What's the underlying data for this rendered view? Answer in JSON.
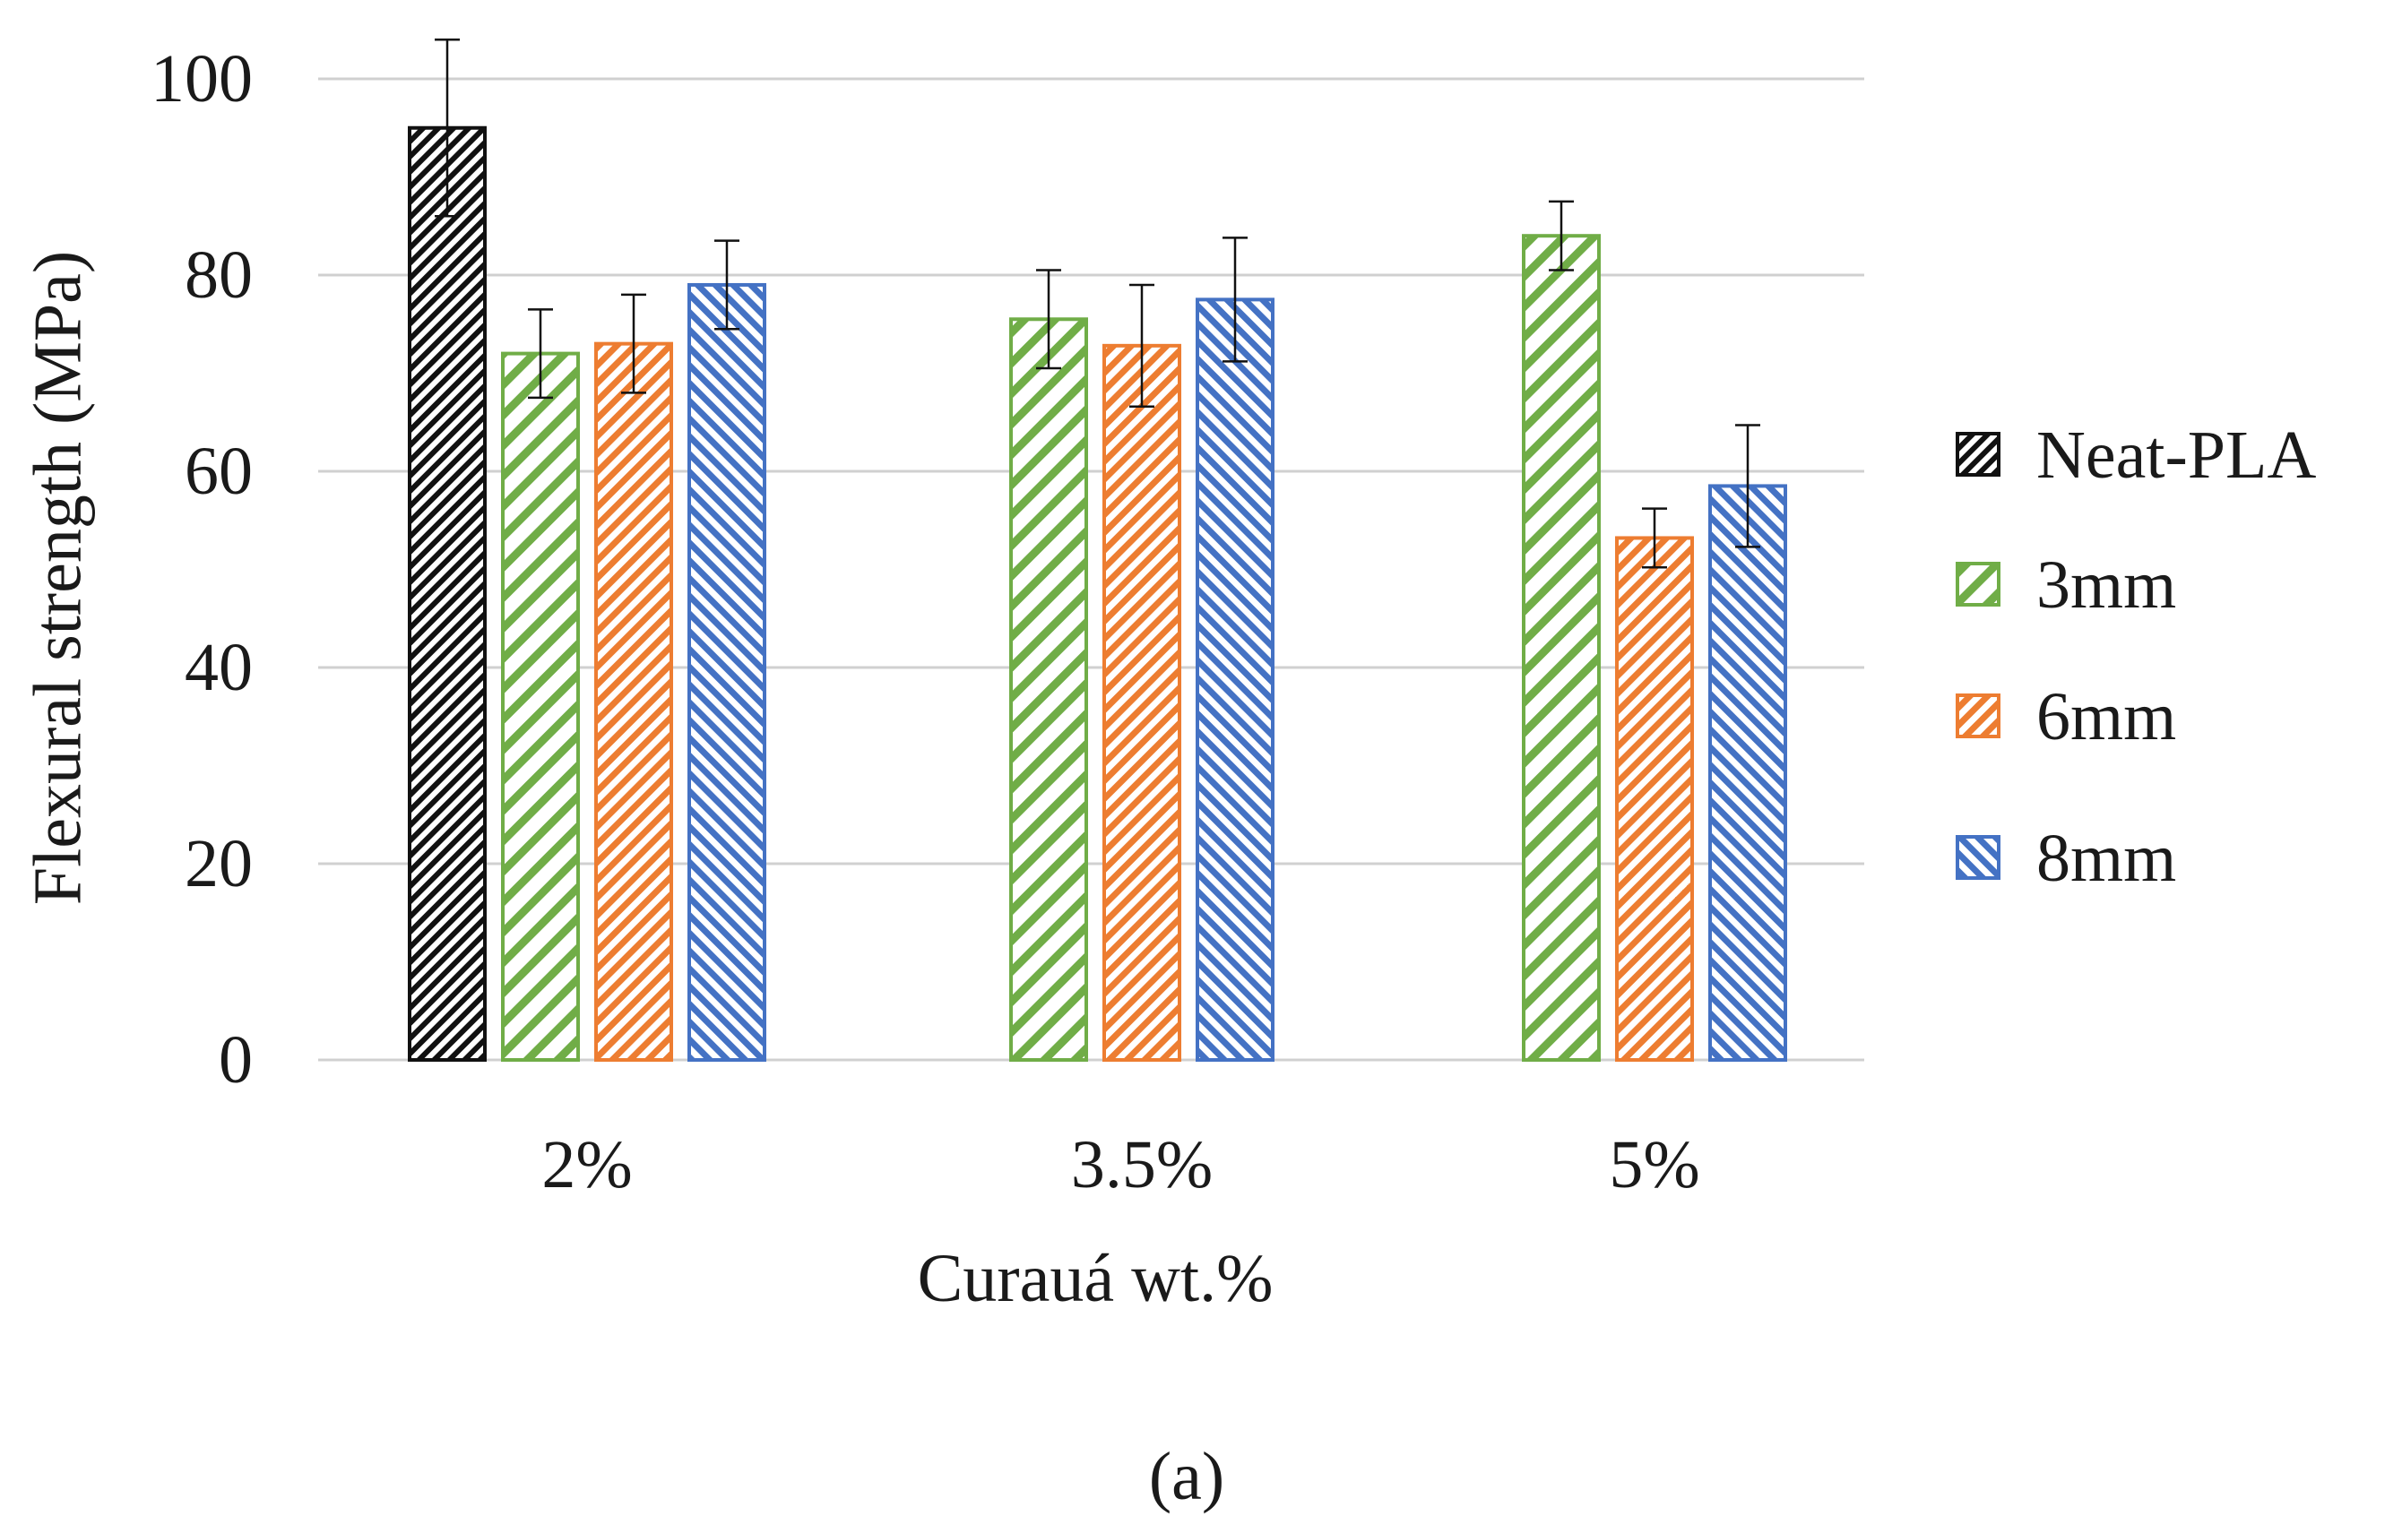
{
  "chart_data": {
    "type": "bar",
    "title": "",
    "xlabel": "Curauá wt.%",
    "ylabel": "Flexural strength (MPa)",
    "ylim": [
      0,
      100
    ],
    "yticks": [
      0,
      20,
      40,
      60,
      80,
      100
    ],
    "ytick_labels": [
      "0",
      "20",
      "40",
      "60",
      "80",
      "100"
    ],
    "grid": true,
    "legend_position": "right",
    "categories": [
      "2%",
      "3.5%",
      "5%"
    ],
    "series": [
      {
        "name": "Neat-PLA",
        "color": "#111111",
        "pattern": "diag-dense",
        "values": [
          95,
          null,
          null
        ],
        "errors": [
          9,
          null,
          null
        ]
      },
      {
        "name": "3mm",
        "color": "#70ad47",
        "pattern": "diag-wide",
        "values": [
          72,
          75.5,
          84
        ],
        "errors": [
          4.5,
          5,
          3.5
        ]
      },
      {
        "name": "6mm",
        "color": "#ed7d31",
        "pattern": "diag-medium",
        "values": [
          73,
          72.8,
          53.2
        ],
        "errors": [
          5,
          6.2,
          3
        ]
      },
      {
        "name": "8mm",
        "color": "#4472c4",
        "pattern": "diag-back",
        "values": [
          79,
          77.5,
          58.5
        ],
        "errors": [
          4.5,
          6.3,
          6.2
        ]
      }
    ]
  },
  "panel_label": "(a)"
}
